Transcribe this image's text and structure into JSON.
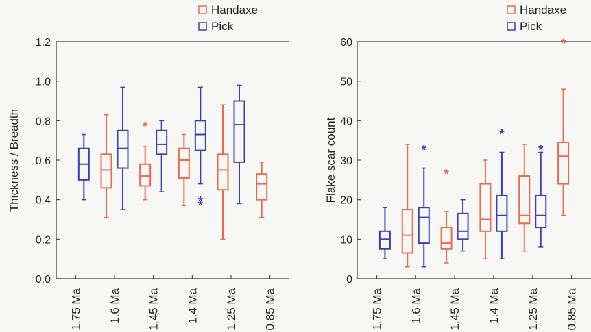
{
  "colors": {
    "handaxe": "#ee6a4e",
    "pick": "#3d3fae",
    "axis": "#333333",
    "background": "#f7f7f5"
  },
  "chart_data": [
    {
      "type": "box",
      "title": "",
      "xlabel": "",
      "ylabel": "Thickness / Breadth",
      "ylim": [
        0,
        1.2
      ],
      "yticks": [
        "0.0",
        "0.2",
        "0.4",
        "0.6",
        "0.8",
        "1.0",
        "1.2"
      ],
      "categories": [
        "1.75 Ma",
        "1.6 Ma",
        "1.45 Ma",
        "1.4 Ma",
        "1.25 Ma",
        "0.85 Ma"
      ],
      "grid": false,
      "legend_position": "top-right",
      "series": [
        {
          "name": "Handaxe",
          "color_key": "handaxe",
          "boxes": [
            null,
            {
              "min": 0.31,
              "q1": 0.46,
              "median": 0.55,
              "q3": 0.63,
              "max": 0.83,
              "outliers": []
            },
            {
              "min": 0.4,
              "q1": 0.47,
              "median": 0.52,
              "q3": 0.58,
              "max": 0.67,
              "outliers": [
                0.78
              ]
            },
            {
              "min": 0.37,
              "q1": 0.51,
              "median": 0.6,
              "q3": 0.66,
              "max": 0.73,
              "outliers": []
            },
            {
              "min": 0.2,
              "q1": 0.45,
              "median": 0.55,
              "q3": 0.63,
              "max": 0.88,
              "outliers": []
            },
            {
              "min": 0.31,
              "q1": 0.4,
              "median": 0.48,
              "q3": 0.53,
              "max": 0.59,
              "outliers": []
            }
          ]
        },
        {
          "name": "Pick",
          "color_key": "pick",
          "boxes": [
            {
              "min": 0.4,
              "q1": 0.5,
              "median": 0.58,
              "q3": 0.66,
              "max": 0.73,
              "outliers": []
            },
            {
              "min": 0.35,
              "q1": 0.56,
              "median": 0.66,
              "q3": 0.75,
              "max": 0.97,
              "outliers": []
            },
            {
              "min": 0.44,
              "q1": 0.63,
              "median": 0.68,
              "q3": 0.75,
              "max": 0.8,
              "outliers": []
            },
            {
              "min": 0.48,
              "q1": 0.65,
              "median": 0.73,
              "q3": 0.8,
              "max": 0.97,
              "outliers": [
                0.4,
                0.38
              ]
            },
            {
              "min": 0.38,
              "q1": 0.59,
              "median": 0.78,
              "q3": 0.9,
              "max": 0.98,
              "outliers": []
            },
            null
          ]
        }
      ]
    },
    {
      "type": "box",
      "title": "",
      "xlabel": "",
      "ylabel": "Flake scar count",
      "ylim": [
        0,
        60
      ],
      "yticks": [
        "0",
        "10",
        "20",
        "30",
        "40",
        "50",
        "60"
      ],
      "categories": [
        "1.75 Ma",
        "1.6 Ma",
        "1.45 Ma",
        "1.4 Ma",
        "1.25 Ma",
        "0.85 Ma"
      ],
      "grid": false,
      "legend_position": "top-right",
      "series": [
        {
          "name": "Handaxe",
          "color_key": "handaxe",
          "boxes": [
            null,
            {
              "min": 3,
              "q1": 6.5,
              "median": 11,
              "q3": 17.5,
              "max": 34,
              "outliers": []
            },
            {
              "min": 4,
              "q1": 7.5,
              "median": 9,
              "q3": 13,
              "max": 17,
              "outliers": [
                27
              ]
            },
            {
              "min": 5,
              "q1": 12,
              "median": 15,
              "q3": 24,
              "max": 30,
              "outliers": []
            },
            {
              "min": 7,
              "q1": 14,
              "median": 16,
              "q3": 26,
              "max": 34,
              "outliers": []
            },
            {
              "min": 16,
              "q1": 24,
              "median": 31,
              "q3": 34.5,
              "max": 48,
              "outliers": [
                60
              ]
            }
          ]
        },
        {
          "name": "Pick",
          "color_key": "pick",
          "boxes": [
            {
              "min": 5,
              "q1": 7.5,
              "median": 10,
              "q3": 12,
              "max": 18,
              "outliers": []
            },
            {
              "min": 3,
              "q1": 9,
              "median": 15.5,
              "q3": 18,
              "max": 28,
              "outliers": [
                33
              ]
            },
            {
              "min": 7,
              "q1": 10,
              "median": 12,
              "q3": 16.5,
              "max": 20,
              "outliers": []
            },
            {
              "min": 5,
              "q1": 12,
              "median": 16,
              "q3": 21,
              "max": 32,
              "outliers": [
                37
              ]
            },
            {
              "min": 8,
              "q1": 13,
              "median": 16,
              "q3": 21,
              "max": 32,
              "outliers": [
                33
              ]
            },
            null
          ]
        }
      ]
    }
  ]
}
